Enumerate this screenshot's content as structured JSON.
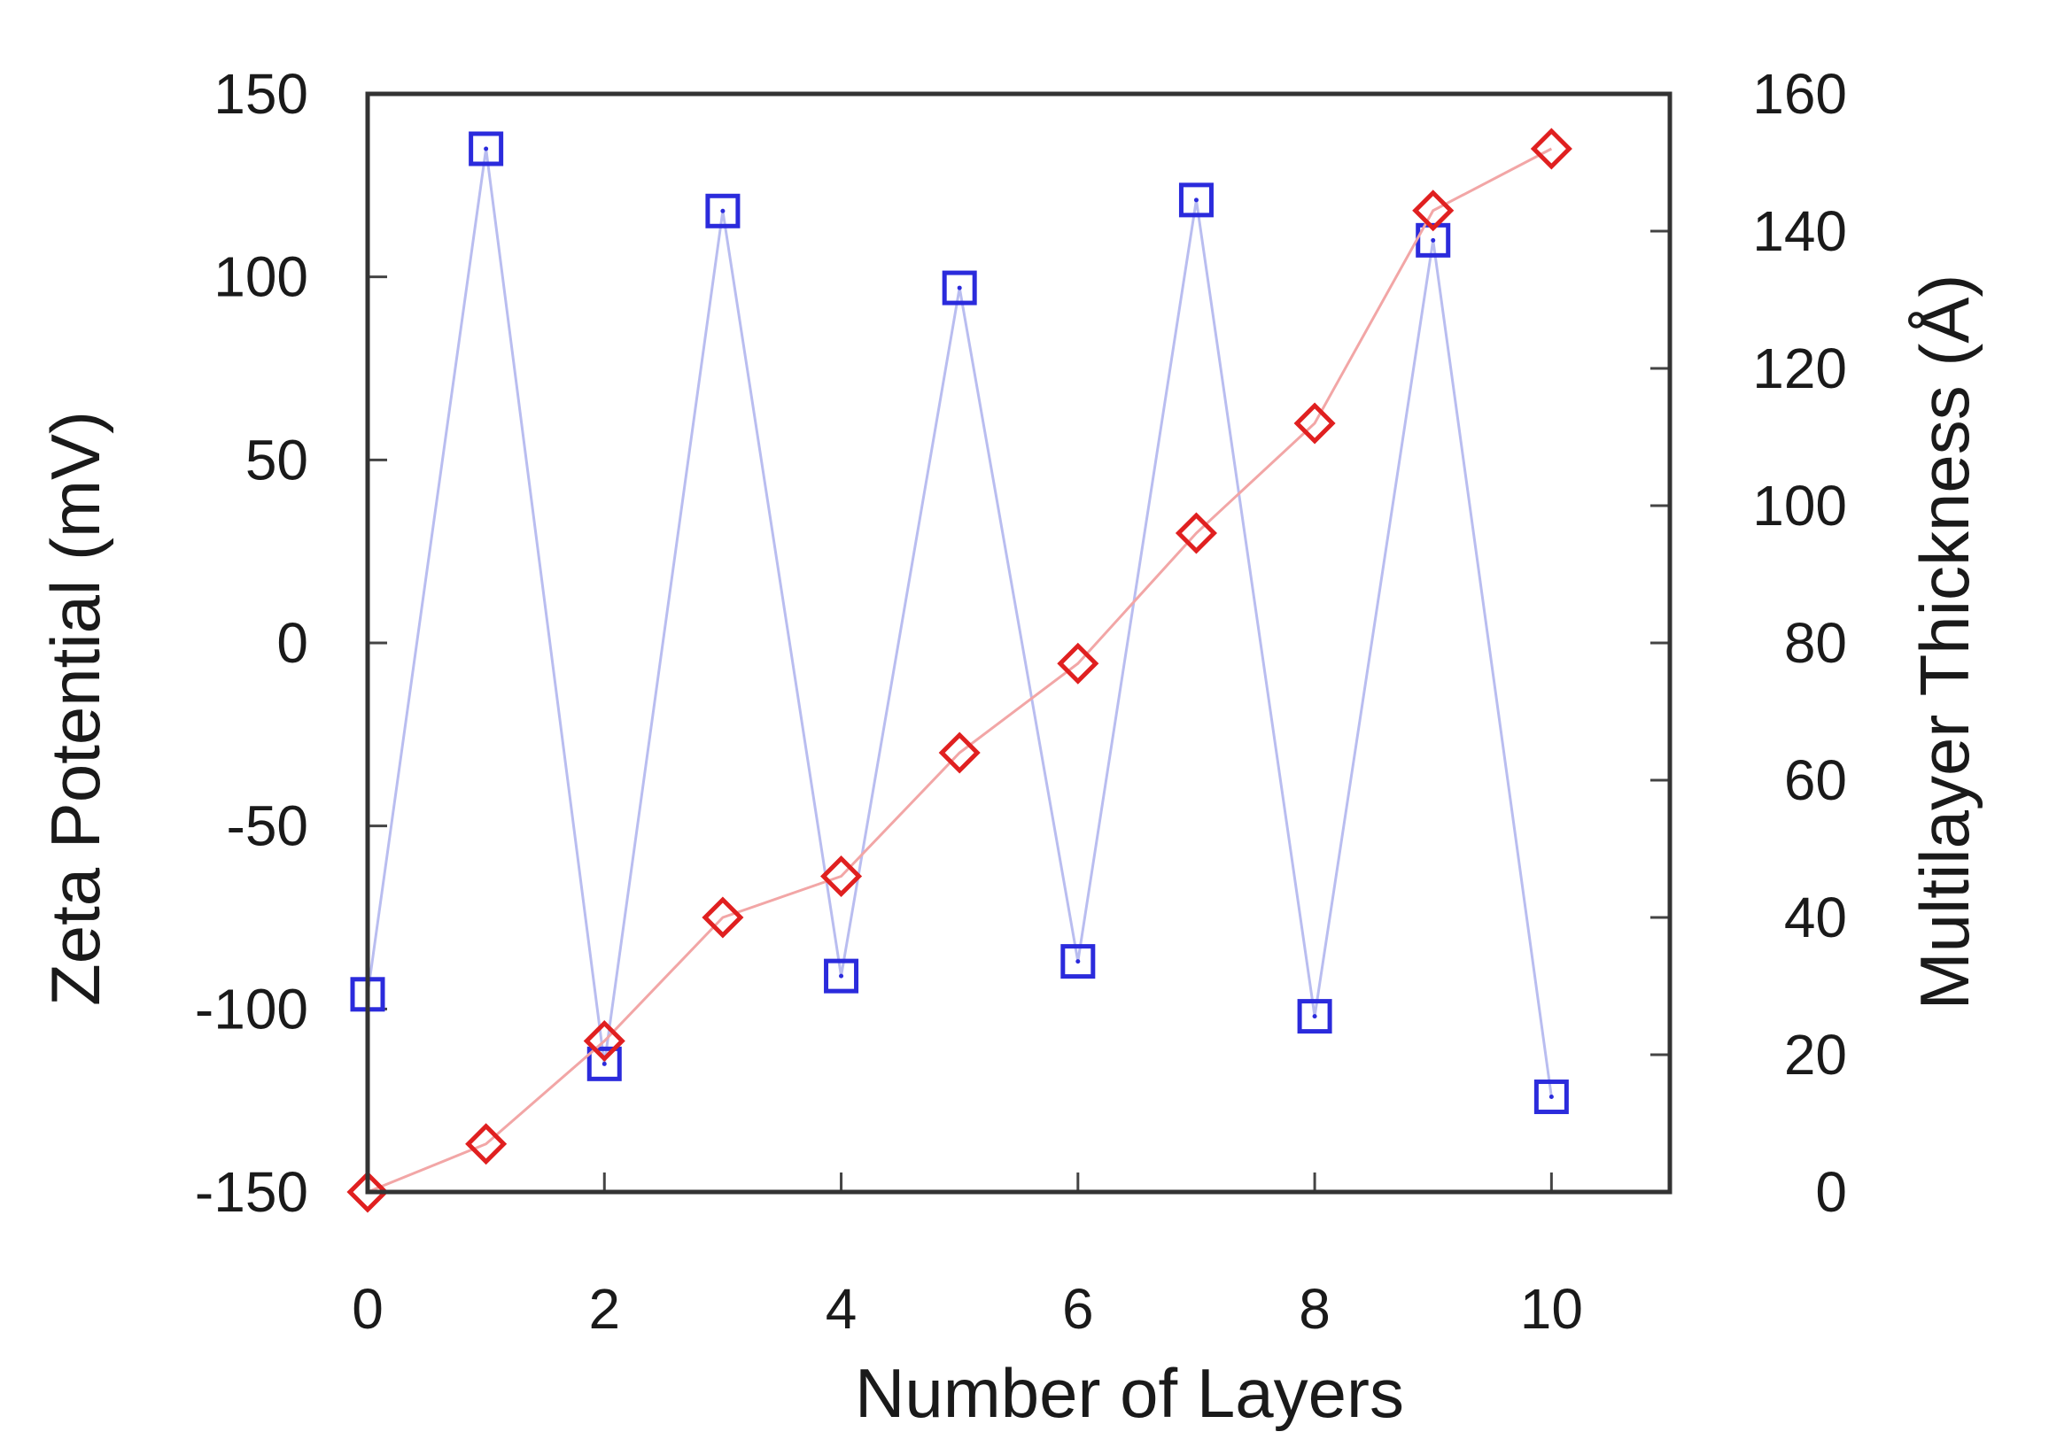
{
  "chart_data": {
    "type": "line",
    "title": "",
    "xlabel": "Number of Layers",
    "ylabel": "Zeta Potential (mV)",
    "y2label": "Multilayer Thickness (Å)",
    "xlim": [
      0,
      11
    ],
    "ylim": [
      -150,
      150
    ],
    "y2lim": [
      0,
      160
    ],
    "xticks": [
      "0",
      "2",
      "4",
      "6",
      "8",
      "10"
    ],
    "yticks": [
      "-150",
      "-100",
      "-50",
      "0",
      "50",
      "100",
      "150"
    ],
    "y2ticks": [
      "0",
      "20",
      "40",
      "60",
      "80",
      "100",
      "120",
      "140",
      "160"
    ],
    "grid": false,
    "legend": "none",
    "series": [
      {
        "axis": "left",
        "marker": "square",
        "color": "#2b2bdc",
        "line_color": "#b9bdf0",
        "x": [
          0,
          1,
          2,
          3,
          4,
          5,
          6,
          7,
          8,
          9,
          10
        ],
        "values": [
          -96,
          135,
          -115,
          118,
          -91,
          97,
          -87,
          121,
          -102,
          110,
          -124
        ]
      },
      {
        "axis": "right",
        "marker": "diamond",
        "color": "#e02020",
        "line_color": "#f2a6a6",
        "x": [
          0,
          1,
          2,
          3,
          4,
          5,
          6,
          7,
          8,
          9,
          10
        ],
        "values": [
          0,
          7,
          22,
          40,
          46,
          64,
          77,
          96,
          112,
          143,
          152
        ]
      }
    ]
  }
}
